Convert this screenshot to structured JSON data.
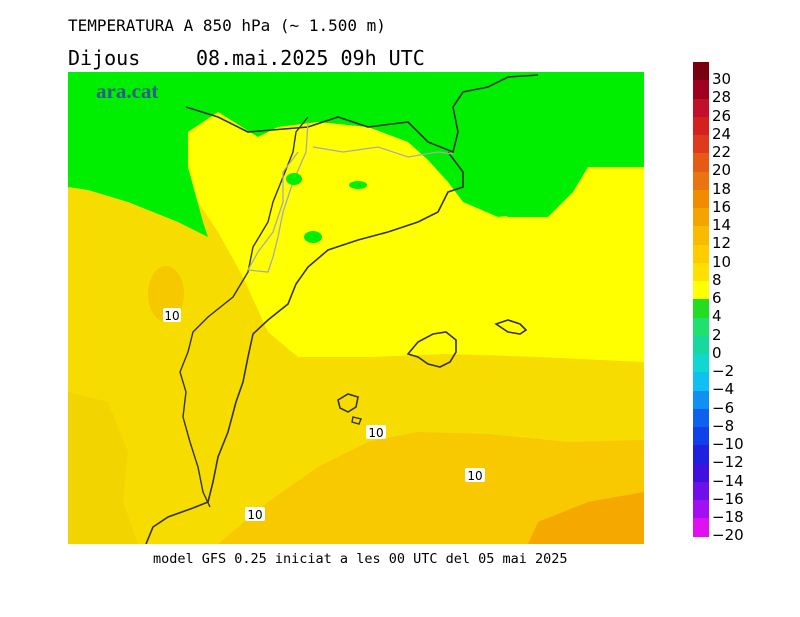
{
  "header": {
    "title": "TEMPERATURA A 850 hPa (~ 1.500 m)",
    "day": "Dijous",
    "datetime": "08.mai.2025 09h UTC"
  },
  "map": {
    "brand": "ara.cat",
    "contour_labels": [
      "10",
      "10",
      "10",
      "10"
    ]
  },
  "legend": {
    "labels": [
      "30",
      "28",
      "26",
      "24",
      "22",
      "20",
      "18",
      "16",
      "14",
      "12",
      "10",
      "8",
      "6",
      "4",
      "2",
      "0",
      "-2",
      "-4",
      "-6",
      "-8",
      "-10",
      "-12",
      "-14",
      "-16",
      "-18",
      "-20"
    ],
    "colors": [
      "#7a0010",
      "#a00020",
      "#c0102a",
      "#d52020",
      "#e03a1e",
      "#e55a14",
      "#ea7410",
      "#f08c00",
      "#f5a300",
      "#f8bb00",
      "#ffcc00",
      "#ffe000",
      "#ffff00",
      "#22dd22",
      "#20e070",
      "#18d8a0",
      "#10d8d0",
      "#10c0f0",
      "#1090f0",
      "#1060f0",
      "#1040e8",
      "#2020e0",
      "#4010e0",
      "#7010e8",
      "#a010f0",
      "#e010f0"
    ]
  },
  "footer": {
    "text": "model GFS 0.25 iniciat a les 00 UTC del 05 mai 2025"
  }
}
